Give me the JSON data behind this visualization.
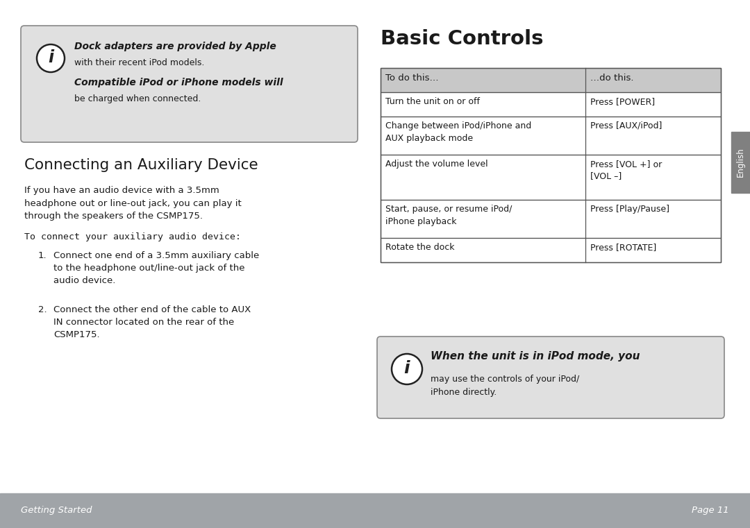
{
  "bg_color": "#ffffff",
  "footer_color": "#a0a4a8",
  "sidebar_color": "#808080",
  "box_bg_color": "#e0e0e0",
  "table_header_bg": "#c8c8c8",
  "title_right": "Basic Controls",
  "section_title": "Connecting an Auxiliary Device",
  "info_box1_line1_italic": "Dock adapters are provided by Apple",
  "info_box1_line2": "with their recent iPod models.",
  "info_box1_line3_italic": "Compatible iPod or iPhone models will",
  "info_box1_line4": "be charged when connected.",
  "body_para": "If you have an audio device with a 3.5mm\nheadphone out or line-out jack, you can play it\nthrough the speakers of the CSMP175.",
  "subheading": "To connect your auxiliary audio device:",
  "step1_label": "1.",
  "step1_text": "Connect one end of a 3.5mm auxiliary cable\nto the headphone out/line-out jack of the\naudio device.",
  "step2_label": "2.",
  "step2_text": "Connect the other end of the cable to AUX\nIN connector located on the rear of the\nCSMP175.",
  "table_col1_header": "To do this…",
  "table_col2_header": "…do this.",
  "table_rows": [
    [
      "Turn the unit on or off",
      "Press [POWER]"
    ],
    [
      "Change between iPod/iPhone and\nAUX playback mode",
      "Press [AUX/iPod]"
    ],
    [
      "Adjust the volume level",
      "Press [VOL +] or\n[VOL –]"
    ],
    [
      "Start, pause, or resume iPod/\niPhone playback",
      "Press [Play/Pause]"
    ],
    [
      "Rotate the dock",
      "Press [ROTATE]"
    ]
  ],
  "info_box2_italic": "When the unit is in iPod mode, you",
  "info_box2_body": "may use the controls of your iPod/\niPhone directly.",
  "sidebar_text": "English",
  "footer_left": "Getting Started",
  "footer_right": "Page 11",
  "text_color": "#1a1a1a",
  "footer_text_color": "#ffffff",
  "sidebar_text_color": "#ffffff",
  "table_border_color": "#555555",
  "box_border_color": "#888888"
}
